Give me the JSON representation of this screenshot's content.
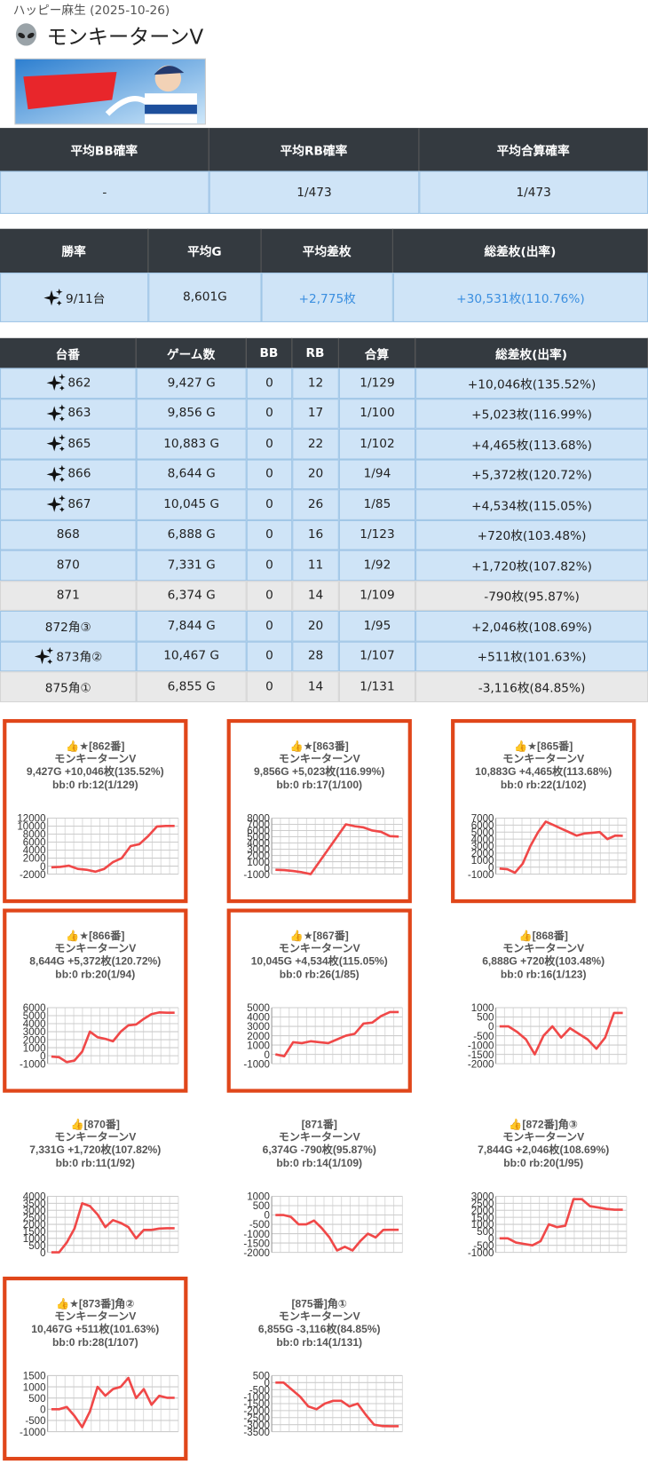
{
  "header": {
    "store": "ハッピー麻生 (2025-10-26)",
    "title": "モンキーターンV"
  },
  "summary_bb": {
    "headers": [
      "平均BB確率",
      "平均RB確率",
      "平均合算確率"
    ],
    "values": [
      "-",
      "1/473",
      "1/473"
    ]
  },
  "summary_win": {
    "headers": [
      "勝率",
      "平均G",
      "平均差枚",
      "総差枚(出率)"
    ],
    "values": [
      "9/11台",
      "8,601G",
      "+2,775枚",
      "+30,531枚(110.76%)"
    ]
  },
  "machines": {
    "headers": [
      "台番",
      "ゲーム数",
      "BB",
      "RB",
      "合算",
      "総差枚(出率)"
    ],
    "rows": [
      {
        "cells": [
          "862",
          "9,427 G",
          "0",
          "12",
          "1/129",
          "+10,046枚(135.52%)"
        ],
        "featured": true
      },
      {
        "cells": [
          "863",
          "9,856 G",
          "0",
          "17",
          "1/100",
          "+5,023枚(116.99%)"
        ],
        "featured": true
      },
      {
        "cells": [
          "865",
          "10,883 G",
          "0",
          "22",
          "1/102",
          "+4,465枚(113.68%)"
        ],
        "featured": true
      },
      {
        "cells": [
          "866",
          "8,644 G",
          "0",
          "20",
          "1/94",
          "+5,372枚(120.72%)"
        ],
        "featured": true
      },
      {
        "cells": [
          "867",
          "10,045 G",
          "0",
          "26",
          "1/85",
          "+4,534枚(115.05%)"
        ],
        "featured": true
      },
      {
        "cells": [
          "868",
          "6,888 G",
          "0",
          "16",
          "1/123",
          "+720枚(103.48%)"
        ],
        "featured": false
      },
      {
        "cells": [
          "870",
          "7,331 G",
          "0",
          "11",
          "1/92",
          "+1,720枚(107.82%)"
        ],
        "featured": false
      },
      {
        "cells": [
          "871",
          "6,374 G",
          "0",
          "14",
          "1/109",
          "-790枚(95.87%)"
        ],
        "featured": false
      },
      {
        "cells": [
          "872角③",
          "7,844 G",
          "0",
          "20",
          "1/95",
          "+2,046枚(108.69%)"
        ],
        "featured": false
      },
      {
        "cells": [
          "873角②",
          "10,467 G",
          "0",
          "28",
          "1/107",
          "+511枚(101.63%)"
        ],
        "featured": true
      },
      {
        "cells": [
          "875角①",
          "6,855 G",
          "0",
          "14",
          "1/131",
          "-3,116枚(84.85%)"
        ],
        "featured": false
      }
    ]
  },
  "charts": [
    {
      "type": "line",
      "title": "👍★[862番]",
      "subtitle": "モンキーターンV",
      "stats": "9,427G +10,046枚(135.52%)",
      "detail": "bb:0 rb:12(1/129)",
      "color": "#f04848",
      "values": [
        -300,
        -200,
        100,
        -700,
        -900,
        -1400,
        -700,
        1000,
        2000,
        5000,
        5500,
        7500,
        9900,
        10046,
        10046
      ],
      "ylim": [
        -2000,
        12000
      ],
      "yticks": [
        -2000,
        0,
        2000,
        4000,
        6000,
        8000,
        10000,
        12000
      ]
    },
    {
      "type": "line",
      "title": "👍★[863番]",
      "subtitle": "モンキーターンV",
      "stats": "9,856G +5,023枚(116.99%)",
      "detail": "bb:0 rb:17(1/100)",
      "color": "#f04848",
      "values": [
        -300,
        -350,
        -500,
        -700,
        -1000,
        1000,
        3000,
        5000,
        7000,
        6700,
        6500,
        6000,
        5800,
        5100,
        5023
      ],
      "ylim": [
        -1000,
        8000
      ],
      "yticks": [
        -1000,
        0,
        1000,
        2000,
        3000,
        4000,
        5000,
        6000,
        7000,
        8000
      ]
    },
    {
      "type": "line",
      "title": "👍★[865番]",
      "subtitle": "モンキーターンV",
      "stats": "10,883G +4,465枚(113.68%)",
      "detail": "bb:0 rb:22(1/102)",
      "color": "#f04848",
      "values": [
        -200,
        -300,
        -800,
        500,
        3000,
        5000,
        6500,
        6000,
        5500,
        5000,
        4500,
        4800,
        4900,
        5000,
        4000,
        4500,
        4465
      ],
      "ylim": [
        -1000,
        7000
      ],
      "yticks": [
        -1000,
        0,
        1000,
        2000,
        3000,
        4000,
        5000,
        6000,
        7000
      ]
    },
    {
      "type": "line",
      "title": "👍★[866番]",
      "subtitle": "モンキーターンV",
      "stats": "8,644G +5,372枚(120.72%)",
      "detail": "bb:0 rb:20(1/94)",
      "color": "#f04848",
      "values": [
        -100,
        -200,
        -800,
        -600,
        500,
        3000,
        2300,
        2100,
        1800,
        3000,
        3800,
        3900,
        4600,
        5200,
        5400,
        5372,
        5372
      ],
      "ylim": [
        -1000,
        6000
      ],
      "yticks": [
        -1000,
        0,
        1000,
        2000,
        3000,
        4000,
        5000,
        6000
      ]
    },
    {
      "type": "line",
      "title": "👍★[867番]",
      "subtitle": "モンキーターンV",
      "stats": "10,045G +4,534枚(115.05%)",
      "detail": "bb:0 rb:26(1/85)",
      "color": "#f04848",
      "values": [
        0,
        -200,
        1300,
        1200,
        1400,
        1300,
        1200,
        1600,
        2000,
        2200,
        3300,
        3400,
        4100,
        4534,
        4534
      ],
      "ylim": [
        -1000,
        5000
      ],
      "yticks": [
        -1000,
        0,
        1000,
        2000,
        3000,
        4000,
        5000
      ]
    },
    {
      "type": "line",
      "title": "👍[868番]",
      "subtitle": "モンキーターンV",
      "stats": "6,888G +720枚(103.48%)",
      "detail": "bb:0 rb:16(1/123)",
      "color": "#f04848",
      "values": [
        0,
        0,
        -300,
        -700,
        -1500,
        -500,
        0,
        -600,
        -100,
        -400,
        -700,
        -1200,
        -600,
        720,
        720
      ],
      "ylim": [
        -2000,
        1000
      ],
      "yticks": [
        -2000,
        -1500,
        -1000,
        -500,
        0,
        500,
        1000
      ]
    },
    {
      "type": "line",
      "title": "👍[870番]",
      "subtitle": "モンキーターンV",
      "stats": "7,331G +1,720枚(107.82%)",
      "detail": "bb:0 rb:11(1/92)",
      "color": "#f04848",
      "values": [
        0,
        0,
        700,
        1700,
        3500,
        3300,
        2700,
        1800,
        2300,
        2100,
        1800,
        1000,
        1600,
        1600,
        1700,
        1720,
        1720
      ],
      "ylim": [
        0,
        4000
      ],
      "yticks": [
        0,
        500,
        1000,
        1500,
        2000,
        2500,
        3000,
        3500,
        4000
      ]
    },
    {
      "type": "line",
      "title": "[871番]",
      "subtitle": "モンキーターンV",
      "stats": "6,374G -790枚(95.87%)",
      "detail": "bb:0 rb:14(1/109)",
      "color": "#f04848",
      "values": [
        0,
        0,
        -100,
        -500,
        -500,
        -300,
        -700,
        -1200,
        -1900,
        -1700,
        -1900,
        -1400,
        -1000,
        -1200,
        -800,
        -790,
        -790
      ],
      "ylim": [
        -2000,
        1000
      ],
      "yticks": [
        -2000,
        -1500,
        -1000,
        -500,
        0,
        500,
        1000
      ]
    },
    {
      "type": "line",
      "title": "👍[872番]角③",
      "subtitle": "モンキーターンV",
      "stats": "7,844G +2,046枚(108.69%)",
      "detail": "bb:0 rb:20(1/95)",
      "color": "#f04848",
      "values": [
        0,
        0,
        -300,
        -400,
        -500,
        -200,
        1000,
        800,
        900,
        2800,
        2800,
        2300,
        2200,
        2100,
        2046,
        2046
      ],
      "ylim": [
        -1000,
        3000
      ],
      "yticks": [
        -1000,
        -500,
        0,
        500,
        1000,
        1500,
        2000,
        2500,
        3000
      ]
    },
    {
      "type": "line",
      "title": "👍★[873番]角②",
      "subtitle": "モンキーターンV",
      "stats": "10,467G +511枚(101.63%)",
      "detail": "bb:0 rb:28(1/107)",
      "color": "#f04848",
      "values": [
        0,
        0,
        100,
        -300,
        -800,
        -100,
        1000,
        600,
        900,
        1000,
        1400,
        500,
        900,
        200,
        600,
        511,
        511
      ],
      "ylim": [
        -1000,
        1500
      ],
      "yticks": [
        -1000,
        -500,
        0,
        500,
        1000,
        1500
      ]
    },
    {
      "type": "line",
      "title": "[875番]角①",
      "subtitle": "モンキーターンV",
      "stats": "6,855G -3,116枚(84.85%)",
      "detail": "bb:0 rb:14(1/131)",
      "color": "#f04848",
      "values": [
        0,
        0,
        -500,
        -1000,
        -1700,
        -1900,
        -1500,
        -1300,
        -1300,
        -1700,
        -1500,
        -2300,
        -3000,
        -3100,
        -3116,
        -3116
      ],
      "ylim": [
        -3500,
        500
      ],
      "yticks": [
        -3500,
        -3000,
        -2500,
        -2000,
        -1500,
        -1000,
        -500,
        0,
        500
      ]
    }
  ]
}
